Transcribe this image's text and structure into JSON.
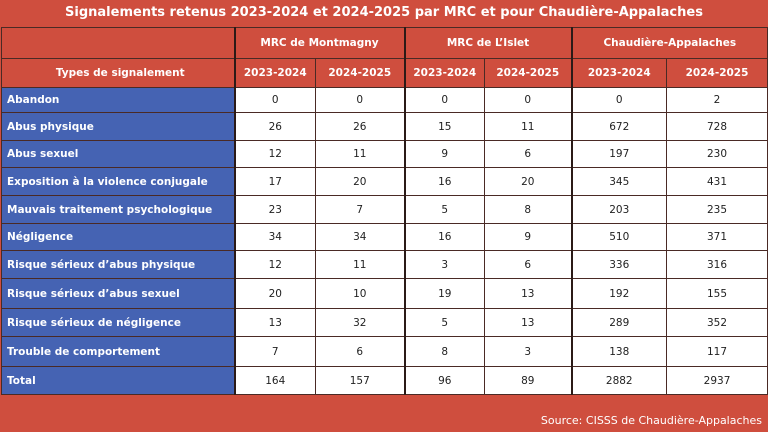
{
  "title": "Signalements retenus 2023-2024 et 2024-2025 par MRC et pour Chaudière-Appalaches",
  "source": "Source: CISSS de Chaudière-Appalaches",
  "colors": {
    "header": "#cf4e3e",
    "rowlabel": "#4563b3",
    "cells": "#ffffff"
  },
  "chart_data": {
    "type": "table",
    "row_header": "Types de signalement",
    "groups": [
      "MRC de Montmagny",
      "MRC de L’Islet",
      "Chaudière-Appalaches"
    ],
    "years": [
      "2023-2024",
      "2024-2025"
    ],
    "rows": [
      {
        "label": "Abandon",
        "values": [
          "0",
          "0",
          "0",
          "0",
          "0",
          "2"
        ]
      },
      {
        "label": "Abus physique",
        "values": [
          "26",
          "26",
          "15",
          "11",
          "672",
          "728"
        ]
      },
      {
        "label": "Abus sexuel",
        "values": [
          "12",
          "11",
          "9",
          "6",
          "197",
          "230"
        ]
      },
      {
        "label": "Exposition à la violence conjugale",
        "values": [
          "17",
          "20",
          "16",
          "20",
          "345",
          "431"
        ]
      },
      {
        "label": "Mauvais traitement psychologique",
        "values": [
          "23",
          "7",
          "5",
          "8",
          "203",
          "235"
        ]
      },
      {
        "label": "Négligence",
        "values": [
          "34",
          "34",
          "16",
          "9",
          "510",
          "371"
        ]
      },
      {
        "label": "Risque sérieux d’abus physique",
        "values": [
          "12",
          "11",
          "3",
          "6",
          "336",
          "316"
        ]
      },
      {
        "label": "Risque sérieux d’abus sexuel",
        "values": [
          "20",
          "10",
          "19",
          "13",
          "192",
          "155"
        ]
      },
      {
        "label": "Risque sérieux de négligence",
        "values": [
          "13",
          "32",
          "5",
          "13",
          "289",
          "352"
        ]
      },
      {
        "label": "Trouble de comportement",
        "values": [
          "7",
          "6",
          "8",
          "3",
          "138",
          "117"
        ]
      },
      {
        "label": "Total",
        "values": [
          "164",
          "157",
          "96",
          "89",
          "2882",
          "2937"
        ]
      }
    ]
  }
}
